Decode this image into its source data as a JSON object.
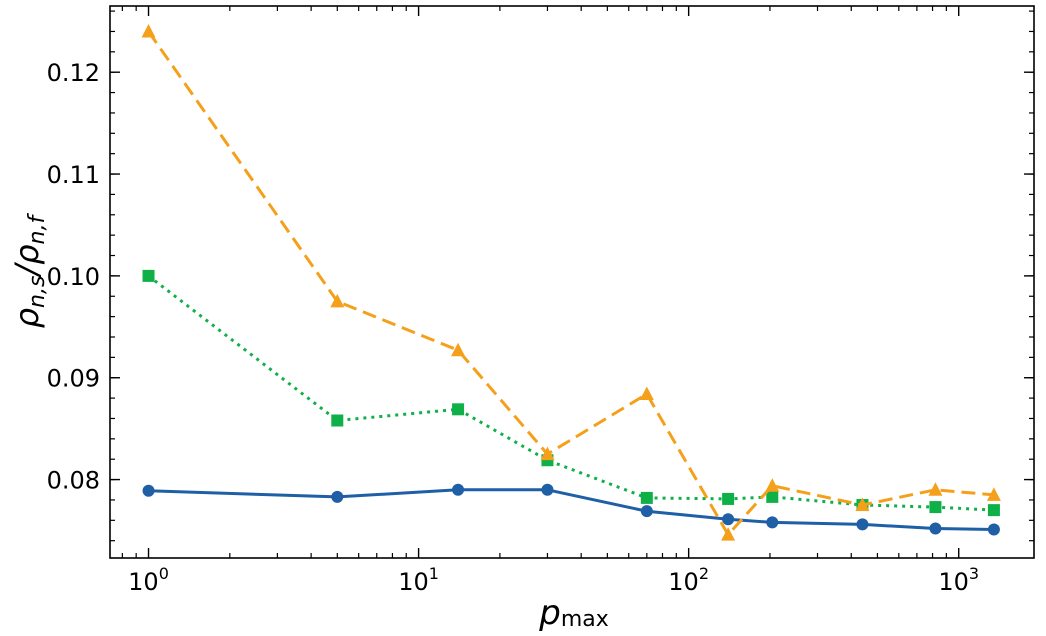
{
  "chart_data": {
    "type": "line",
    "title": "",
    "xlabel": "p",
    "xlabel_sub": "max",
    "ylabel": "ρ",
    "ylabel_sub1": "n,s",
    "ylabel_mid": "/ρ",
    "ylabel_sub2": "n,f",
    "xscale": "log",
    "xlim": [
      0.72,
      1900
    ],
    "ylim": [
      0.0723,
      0.1265
    ],
    "grid": false,
    "legend": "none",
    "xticks": [
      {
        "value": 1,
        "base": "10",
        "exp": "0"
      },
      {
        "value": 10,
        "base": "10",
        "exp": "1"
      },
      {
        "value": 100,
        "base": "10",
        "exp": "2"
      },
      {
        "value": 1000,
        "base": "10",
        "exp": "3"
      }
    ],
    "yticks": [
      {
        "value": 0.08,
        "label": "0.08"
      },
      {
        "value": 0.09,
        "label": "0.09"
      },
      {
        "value": 0.1,
        "label": "0.10"
      },
      {
        "value": 0.11,
        "label": "0.11"
      },
      {
        "value": 0.12,
        "label": "0.12"
      }
    ],
    "x": [
      1,
      5,
      14,
      30,
      70,
      140,
      204,
      440,
      820,
      1350
    ],
    "series": [
      {
        "name": "series-blue-circle",
        "color": "#1f5fa6",
        "marker": "circle",
        "linestyle": "solid",
        "values": [
          0.0789,
          0.0783,
          0.079,
          0.079,
          0.0769,
          0.0761,
          0.0758,
          0.0756,
          0.0752,
          0.0751
        ]
      },
      {
        "name": "series-green-square",
        "color": "#10b048",
        "marker": "square",
        "linestyle": "dotted",
        "values": [
          0.1,
          0.0858,
          0.0869,
          0.0819,
          0.0782,
          0.0781,
          0.0783,
          0.0775,
          0.0773,
          0.077
        ]
      },
      {
        "name": "series-orange-triangle",
        "color": "#f5a01a",
        "marker": "triangle",
        "linestyle": "dashed",
        "values": [
          0.124,
          0.0975,
          0.0927,
          0.0825,
          0.0884,
          0.0746,
          0.0794,
          0.0775,
          0.079,
          0.0785
        ]
      }
    ]
  }
}
